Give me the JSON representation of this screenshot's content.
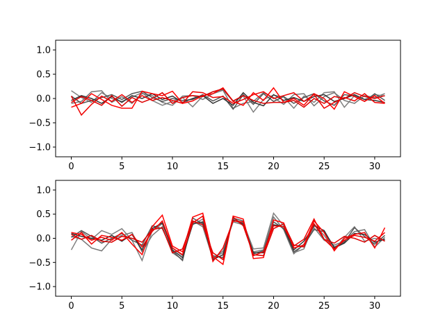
{
  "chart_data": [
    {
      "type": "line",
      "title": "",
      "xlabel": "",
      "ylabel": "",
      "xlim": [
        -1.55,
        32.55
      ],
      "ylim": [
        -1.2,
        1.2
      ],
      "xticks": [
        0,
        5,
        10,
        15,
        20,
        25,
        30
      ],
      "yticks": [
        -1.0,
        -0.5,
        0.0,
        0.5,
        1.0
      ],
      "xtick_labels": [
        "0",
        "5",
        "10",
        "15",
        "20",
        "25",
        "30"
      ],
      "ytick_labels": [
        "−1.0",
        "−0.5",
        "0.0",
        "0.5",
        "1.0"
      ],
      "grid": false,
      "x": [
        0,
        1,
        2,
        3,
        4,
        5,
        6,
        7,
        8,
        9,
        10,
        11,
        12,
        13,
        14,
        15,
        16,
        17,
        18,
        19,
        20,
        21,
        22,
        23,
        24,
        25,
        26,
        27,
        28,
        29,
        30,
        31
      ],
      "series": [
        {
          "color": "#808080",
          "values": [
            0.16,
            0.02,
            -0.08,
            0.12,
            0.0,
            -0.06,
            0.03,
            0.12,
            -0.04,
            -0.14,
            -0.06,
            0.02,
            -0.17,
            0.05,
            0.14,
            0.18,
            -0.06,
            0.05,
            -0.28,
            -0.02,
            0.07,
            0.03,
            -0.2,
            0.05,
            -0.08,
            0.12,
            0.14,
            -0.18,
            0.06,
            -0.02,
            0.08,
            0.05
          ]
        },
        {
          "color": "#777777",
          "values": [
            -0.1,
            -0.06,
            0.14,
            0.16,
            -0.08,
            0.04,
            -0.1,
            0.1,
            0.06,
            -0.08,
            -0.14,
            0.05,
            0.06,
            -0.02,
            0.1,
            0.17,
            -0.2,
            -0.1,
            -0.06,
            0.12,
            0.02,
            -0.12,
            0.08,
            0.1,
            -0.15,
            0.04,
            0.12,
            -0.04,
            -0.1,
            0.06,
            0.02,
            0.1
          ]
        },
        {
          "color": "#555555",
          "values": [
            0.05,
            -0.1,
            -0.04,
            0.02,
            0.08,
            -0.02,
            0.1,
            0.15,
            0.02,
            -0.06,
            0.0,
            -0.04,
            -0.02,
            0.08,
            -0.05,
            0.05,
            -0.22,
            0.08,
            -0.12,
            0.1,
            -0.06,
            0.04,
            -0.1,
            0.02,
            0.1,
            -0.05,
            -0.14,
            0.08,
            0.05,
            -0.06,
            0.1,
            -0.04
          ]
        },
        {
          "color": "#333333",
          "values": [
            -0.04,
            0.06,
            0.0,
            -0.1,
            0.04,
            -0.08,
            0.06,
            0.0,
            0.1,
            -0.02,
            0.05,
            -0.08,
            0.0,
            0.06,
            -0.1,
            0.0,
            -0.14,
            0.12,
            -0.08,
            -0.15,
            0.08,
            -0.04,
            0.02,
            -0.06,
            0.04,
            0.08,
            -0.06,
            0.0,
            0.08,
            -0.02,
            -0.04,
            -0.08
          ]
        },
        {
          "color": "#ff0000",
          "values": [
            -0.18,
            -0.1,
            0.1,
            -0.02,
            -0.14,
            -0.2,
            -0.2,
            0.15,
            0.1,
            0.06,
            0.15,
            -0.1,
            -0.05,
            0.06,
            0.1,
            0.22,
            -0.06,
            -0.14,
            0.12,
            -0.04,
            0.22,
            -0.08,
            0.0,
            -0.14,
            0.1,
            0.0,
            -0.22,
            0.14,
            0.04,
            -0.06,
            0.06,
            -0.1
          ]
        },
        {
          "color": "#ee0000",
          "values": [
            0.05,
            -0.34,
            -0.12,
            0.05,
            -0.06,
            0.08,
            -0.08,
            0.06,
            -0.04,
            0.02,
            -0.04,
            -0.1,
            0.14,
            0.12,
            0.02,
            0.04,
            -0.1,
            -0.02,
            0.08,
            0.14,
            0.0,
            0.06,
            0.12,
            -0.06,
            0.08,
            -0.2,
            -0.08,
            0.02,
            -0.05,
            0.1,
            -0.08,
            -0.1
          ]
        },
        {
          "color": "#dd0000",
          "values": [
            -0.08,
            0.04,
            -0.04,
            -0.14,
            0.06,
            -0.16,
            0.02,
            -0.08,
            0.0,
            0.12,
            -0.1,
            0.02,
            0.06,
            0.04,
            0.14,
            0.2,
            -0.05,
            0.06,
            -0.04,
            -0.1,
            -0.08,
            -0.08,
            -0.04,
            -0.18,
            0.0,
            -0.1,
            0.04,
            0.0,
            0.12,
            0.04,
            0.0,
            0.06
          ]
        }
      ]
    },
    {
      "type": "line",
      "title": "",
      "xlabel": "",
      "ylabel": "",
      "xlim": [
        -1.55,
        32.55
      ],
      "ylim": [
        -1.2,
        1.2
      ],
      "xticks": [
        0,
        5,
        10,
        15,
        20,
        25,
        30
      ],
      "yticks": [
        -1.0,
        -0.5,
        0.0,
        0.5,
        1.0
      ],
      "xtick_labels": [
        "0",
        "5",
        "10",
        "15",
        "20",
        "25",
        "30"
      ],
      "ytick_labels": [
        "−1.0",
        "−0.5",
        "0.0",
        "0.5",
        "1.0"
      ],
      "grid": false,
      "x": [
        0,
        1,
        2,
        3,
        4,
        5,
        6,
        7,
        8,
        9,
        10,
        11,
        12,
        13,
        14,
        15,
        16,
        17,
        18,
        19,
        20,
        21,
        22,
        23,
        24,
        25,
        26,
        27,
        28,
        29,
        30,
        31
      ],
      "series": [
        {
          "color": "#808080",
          "values": [
            -0.24,
            0.14,
            -0.02,
            0.16,
            0.08,
            0.2,
            -0.04,
            -0.46,
            0.16,
            0.3,
            -0.2,
            -0.36,
            0.28,
            0.4,
            -0.4,
            -0.3,
            0.4,
            0.32,
            -0.22,
            -0.2,
            0.52,
            0.26,
            -0.3,
            -0.22,
            0.3,
            0.06,
            -0.24,
            0.02,
            0.24,
            -0.06,
            0.0,
            -0.04
          ]
        },
        {
          "color": "#777777",
          "values": [
            0.04,
            -0.02,
            -0.2,
            -0.26,
            -0.02,
            0.06,
            0.12,
            -0.28,
            0.06,
            0.24,
            -0.3,
            -0.44,
            0.36,
            0.24,
            -0.42,
            -0.26,
            0.34,
            0.28,
            -0.28,
            -0.24,
            0.44,
            0.18,
            -0.32,
            -0.12,
            0.22,
            -0.04,
            -0.14,
            -0.06,
            0.14,
            0.18,
            -0.18,
            0.02
          ]
        },
        {
          "color": "#555555",
          "values": [
            0.02,
            0.16,
            0.04,
            -0.1,
            0.0,
            0.1,
            -0.04,
            -0.14,
            0.26,
            0.2,
            -0.26,
            -0.46,
            0.42,
            0.3,
            -0.36,
            -0.4,
            0.42,
            0.36,
            -0.32,
            -0.26,
            0.34,
            0.2,
            -0.28,
            -0.14,
            0.18,
            0.14,
            -0.18,
            -0.08,
            0.22,
            0.04,
            -0.12,
            0.06
          ]
        },
        {
          "color": "#333333",
          "values": [
            0.1,
            0.04,
            0.0,
            -0.04,
            0.06,
            -0.06,
            0.08,
            -0.24,
            0.2,
            0.32,
            -0.24,
            -0.4,
            0.3,
            0.34,
            -0.44,
            -0.34,
            0.38,
            0.3,
            -0.3,
            -0.3,
            0.28,
            0.24,
            -0.24,
            -0.06,
            0.26,
            0.16,
            -0.2,
            -0.1,
            0.1,
            0.08,
            -0.08,
            -0.02
          ]
        },
        {
          "color": "#ff0000",
          "values": [
            0.12,
            0.08,
            -0.04,
            0.02,
            -0.04,
            0.12,
            -0.12,
            -0.34,
            0.24,
            0.48,
            -0.16,
            -0.28,
            0.44,
            0.52,
            -0.38,
            -0.54,
            0.46,
            0.4,
            -0.42,
            -0.4,
            0.38,
            0.32,
            -0.2,
            -0.14,
            0.36,
            0.12,
            -0.26,
            0.0,
            0.08,
            0.12,
            -0.2,
            0.22
          ]
        },
        {
          "color": "#ee0000",
          "values": [
            -0.04,
            0.12,
            -0.12,
            0.06,
            0.02,
            -0.04,
            0.08,
            -0.18,
            0.14,
            0.36,
            -0.2,
            -0.34,
            0.32,
            0.46,
            -0.48,
            -0.2,
            0.36,
            0.34,
            -0.36,
            -0.28,
            0.26,
            0.24,
            -0.16,
            -0.02,
            0.4,
            -0.02,
            -0.22,
            -0.04,
            0.06,
            0.02,
            -0.06,
            0.12
          ]
        },
        {
          "color": "#dd0000",
          "values": [
            0.08,
            -0.02,
            0.06,
            -0.06,
            -0.08,
            0.04,
            0.0,
            -0.08,
            0.18,
            0.22,
            -0.3,
            -0.22,
            0.36,
            0.28,
            -0.3,
            -0.44,
            0.44,
            0.26,
            -0.34,
            -0.36,
            0.2,
            0.3,
            -0.14,
            -0.18,
            0.3,
            -0.02,
            -0.1,
            0.04,
            0.0,
            -0.08,
            0.06,
            -0.06
          ]
        }
      ]
    }
  ]
}
